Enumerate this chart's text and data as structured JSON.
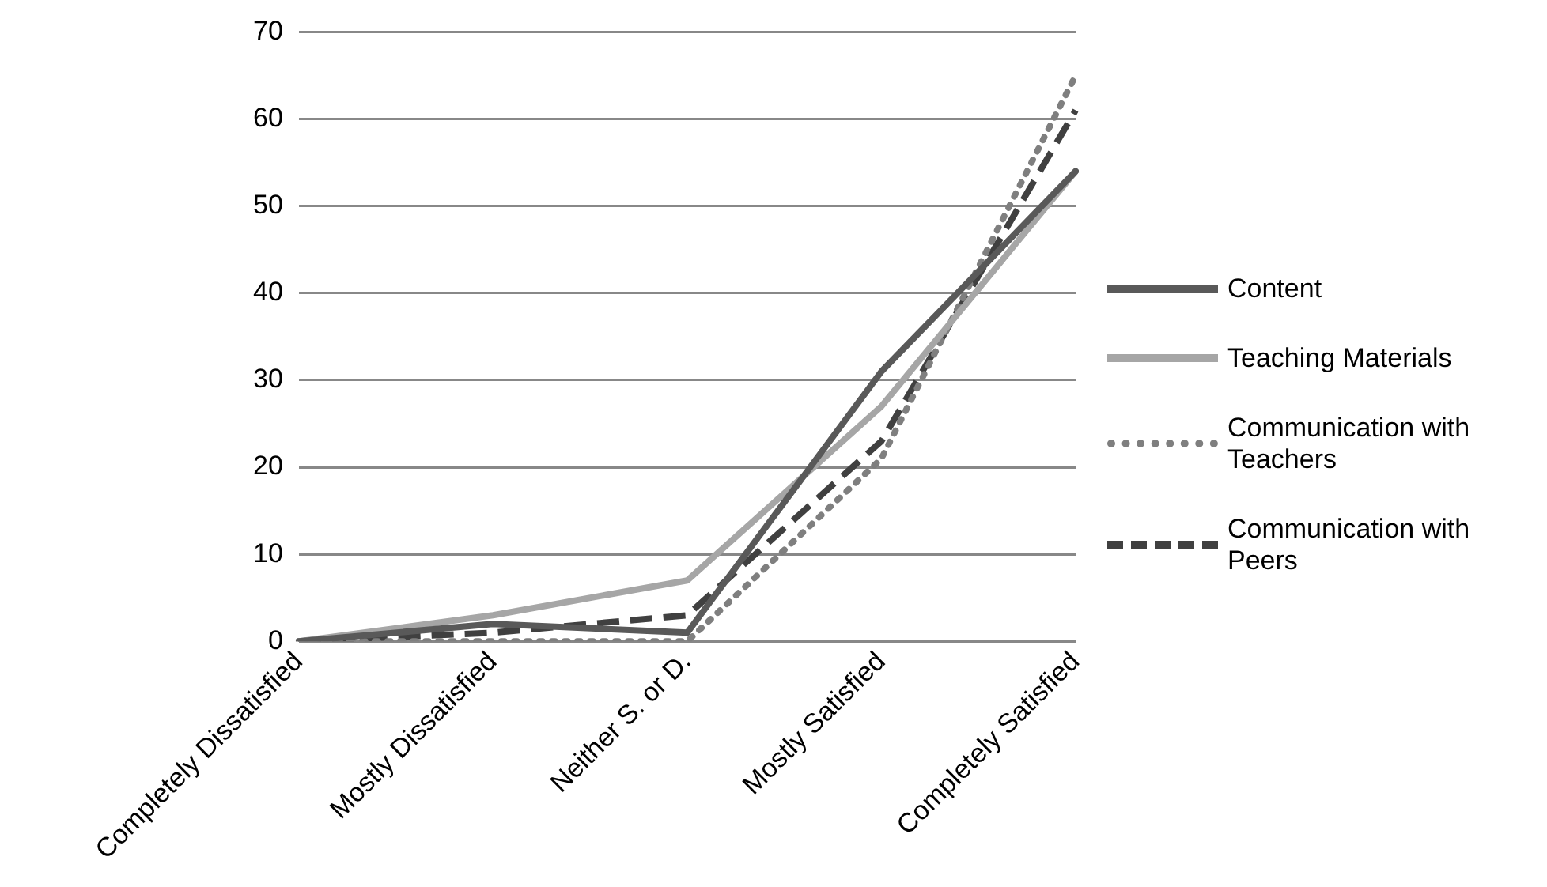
{
  "chart_data": {
    "type": "line",
    "categories": [
      "Completely Dissatisfied",
      "Mostly Dissatisfied",
      "Neither S. or D.",
      "Mostly Satisfied",
      "Completely Satisfied"
    ],
    "series": [
      {
        "name": "Content",
        "color": "#595959",
        "line_style": "solid",
        "values": [
          0,
          2,
          1,
          31,
          54
        ]
      },
      {
        "name": "Teaching Materials",
        "color": "#a6a6a6",
        "line_style": "solid",
        "values": [
          0,
          3,
          7,
          27,
          54
        ]
      },
      {
        "name": "Communication with Teachers",
        "color": "#7f7f7f",
        "line_style": "dotted",
        "values": [
          0,
          0,
          0,
          21,
          65
        ]
      },
      {
        "name": "Communication with Peers",
        "color": "#404040",
        "line_style": "dashed",
        "values": [
          0,
          1,
          3,
          23,
          61
        ]
      }
    ],
    "ylim": [
      0,
      70
    ],
    "yticks": [
      0,
      10,
      20,
      30,
      40,
      50,
      60,
      70
    ],
    "grid": "y",
    "legend": "right",
    "marker": "none"
  }
}
